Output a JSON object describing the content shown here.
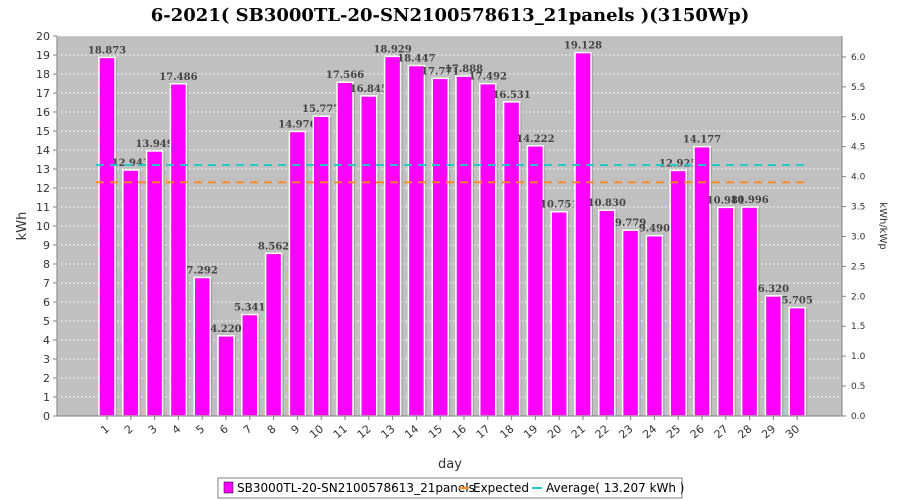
{
  "chart_data": {
    "type": "bar",
    "title": "6-2021( SB3000TL-20-SN2100578613_21panels )(3150Wp)",
    "xlabel": "day",
    "ylabel": "kWh",
    "y2label": "kWh/kWp",
    "ylim": [
      0,
      20
    ],
    "y2lim": [
      0,
      6.35
    ],
    "yticks": [
      "0",
      "1",
      "2",
      "3",
      "4",
      "5",
      "6",
      "7",
      "8",
      "9",
      "10",
      "11",
      "12",
      "13",
      "14",
      "15",
      "16",
      "17",
      "18",
      "19",
      "20"
    ],
    "y2ticks": [
      "0.0",
      "0.5",
      "1.0",
      "1.5",
      "2.0",
      "2.5",
      "3.0",
      "3.5",
      "4.0",
      "4.5",
      "5.0",
      "5.5",
      "6.0"
    ],
    "categories": [
      "1",
      "2",
      "3",
      "4",
      "5",
      "6",
      "7",
      "8",
      "9",
      "10",
      "11",
      "12",
      "13",
      "14",
      "15",
      "16",
      "17",
      "18",
      "19",
      "20",
      "21",
      "22",
      "23",
      "24",
      "25",
      "26",
      "27",
      "28",
      "29",
      "30"
    ],
    "series": [
      {
        "name": "SB3000TL-20-SN2100578613_21panels",
        "color": "#ff00ff",
        "values": [
          18.873,
          12.943,
          13.949,
          17.486,
          7.292,
          4.22,
          5.341,
          8.562,
          14.976,
          15.777,
          17.566,
          16.845,
          18.929,
          18.447,
          17.771,
          17.888,
          17.492,
          16.531,
          14.222,
          10.751,
          19.128,
          10.83,
          9.779,
          9.49,
          12.925,
          14.177,
          10.981,
          10.996,
          6.32,
          5.705
        ],
        "labels": [
          "18.873",
          "12.943",
          "13.949",
          "17.486",
          "7.292",
          "4.220",
          "5.341",
          "8.562",
          "14.976",
          "15.777",
          "17.566",
          "16.845",
          "18.929",
          "18.447",
          "17.771",
          "17.888",
          "17.492",
          "16.531",
          "14.222",
          "10.751",
          "19.128",
          "10.830",
          "9.779",
          "9.490",
          "12.925",
          "14.177",
          "10.981",
          "10.996",
          "6.320",
          "5.705"
        ]
      }
    ],
    "reference_lines": [
      {
        "name": "Expected",
        "value": 12.3,
        "color": "#ff8c1a",
        "style": "dashed"
      },
      {
        "name": "Average( 13.207 kWh )",
        "value": 13.207,
        "color": "#20c8c8",
        "style": "dashed"
      }
    ],
    "grid": true,
    "legend_position": "bottom"
  },
  "legend": {
    "items": [
      {
        "label": "SB3000TL-20-SN2100578613_21panels",
        "color": "#ff00ff",
        "kind": "box"
      },
      {
        "label": "Expected",
        "color": "#ff8c1a",
        "kind": "line"
      },
      {
        "label": "Average( 13.207 kWh )",
        "color": "#20c8c8",
        "kind": "line"
      }
    ]
  }
}
